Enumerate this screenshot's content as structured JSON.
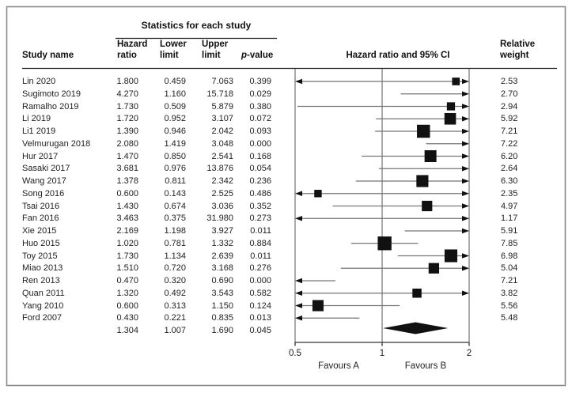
{
  "header": {
    "stats_group_label": "Statistics for each study",
    "col_study": "Study name",
    "col_hr_line1": "Hazard",
    "col_hr_line2": "ratio",
    "col_lower_line1": "Lower",
    "col_lower_line2": "limit",
    "col_upper_line1": "Upper",
    "col_upper_line2": "limit",
    "col_p_italic": "p",
    "col_p_rest": "-value",
    "col_ci": "Hazard ratio and 95% CI",
    "col_weight_line1": "Relative",
    "col_weight_line2": "weight"
  },
  "axis": {
    "tick_labels": [
      "0.5",
      "1",
      "2"
    ],
    "left_label": "Favours A",
    "right_label": "Favours B"
  },
  "colors": {
    "marker": "#111111",
    "ci_line": "#757575",
    "grid_line": "#7d7d7d",
    "rule": "#222222",
    "frame": "#8a8a8a",
    "text": "#222222"
  },
  "chart_data": {
    "type": "forest",
    "title": "Hazard ratio and 95% CI",
    "x_axis": {
      "scale": "log",
      "ticks": [
        0.5,
        1,
        2
      ],
      "range": [
        0.5,
        2
      ],
      "left_label": "Favours A",
      "right_label": "Favours B"
    },
    "columns": [
      "Study name",
      "Hazard ratio",
      "Lower limit",
      "Upper limit",
      "p-value",
      "Relative weight"
    ],
    "studies": [
      {
        "name": "Lin 2020",
        "hr": 1.8,
        "lower": 0.459,
        "upper": 7.063,
        "p": 0.399,
        "weight": 2.53
      },
      {
        "name": "Sugimoto 2019",
        "hr": 4.27,
        "lower": 1.16,
        "upper": 15.718,
        "p": 0.029,
        "weight": 2.7
      },
      {
        "name": "Ramalho 2019",
        "hr": 1.73,
        "lower": 0.509,
        "upper": 5.879,
        "p": 0.38,
        "weight": 2.94
      },
      {
        "name": "Li 2019",
        "hr": 1.72,
        "lower": 0.952,
        "upper": 3.107,
        "p": 0.072,
        "weight": 5.92
      },
      {
        "name": "Li1 2019",
        "hr": 1.39,
        "lower": 0.946,
        "upper": 2.042,
        "p": 0.093,
        "weight": 7.21
      },
      {
        "name": "Velmurugan 2018",
        "hr": 2.08,
        "lower": 1.419,
        "upper": 3.048,
        "p": 0.0,
        "weight": 7.22
      },
      {
        "name": "Hur 2017",
        "hr": 1.47,
        "lower": 0.85,
        "upper": 2.541,
        "p": 0.168,
        "weight": 6.2
      },
      {
        "name": "Sasaki 2017",
        "hr": 3.681,
        "lower": 0.976,
        "upper": 13.876,
        "p": 0.054,
        "weight": 2.64
      },
      {
        "name": "Wang 2017",
        "hr": 1.378,
        "lower": 0.811,
        "upper": 2.342,
        "p": 0.236,
        "weight": 6.3
      },
      {
        "name": "Song 2016",
        "hr": 0.6,
        "lower": 0.143,
        "upper": 2.525,
        "p": 0.486,
        "weight": 2.35
      },
      {
        "name": "Tsai 2016",
        "hr": 1.43,
        "lower": 0.674,
        "upper": 3.036,
        "p": 0.352,
        "weight": 4.97
      },
      {
        "name": "Fan 2016",
        "hr": 3.463,
        "lower": 0.375,
        "upper": 31.98,
        "p": 0.273,
        "weight": 1.17
      },
      {
        "name": "Xie 2015",
        "hr": 2.169,
        "lower": 1.198,
        "upper": 3.927,
        "p": 0.011,
        "weight": 5.91
      },
      {
        "name": "Huo 2015",
        "hr": 1.02,
        "lower": 0.781,
        "upper": 1.332,
        "p": 0.884,
        "weight": 7.85
      },
      {
        "name": "Toy 2015",
        "hr": 1.73,
        "lower": 1.134,
        "upper": 2.639,
        "p": 0.011,
        "weight": 6.98
      },
      {
        "name": "Miao 2013",
        "hr": 1.51,
        "lower": 0.72,
        "upper": 3.168,
        "p": 0.276,
        "weight": 5.04
      },
      {
        "name": "Ren 2013",
        "hr": 0.47,
        "lower": 0.32,
        "upper": 0.69,
        "p": 0.0,
        "weight": 7.21
      },
      {
        "name": "Quan 2011",
        "hr": 1.32,
        "lower": 0.492,
        "upper": 3.543,
        "p": 0.582,
        "weight": 3.82
      },
      {
        "name": "Yang 2010",
        "hr": 0.6,
        "lower": 0.313,
        "upper": 1.15,
        "p": 0.124,
        "weight": 5.56
      },
      {
        "name": "Ford 2007",
        "hr": 0.43,
        "lower": 0.221,
        "upper": 0.835,
        "p": 0.013,
        "weight": 5.48
      }
    ],
    "summary": {
      "hr": 1.304,
      "lower": 1.007,
      "upper": 1.69,
      "p": 0.045
    }
  }
}
